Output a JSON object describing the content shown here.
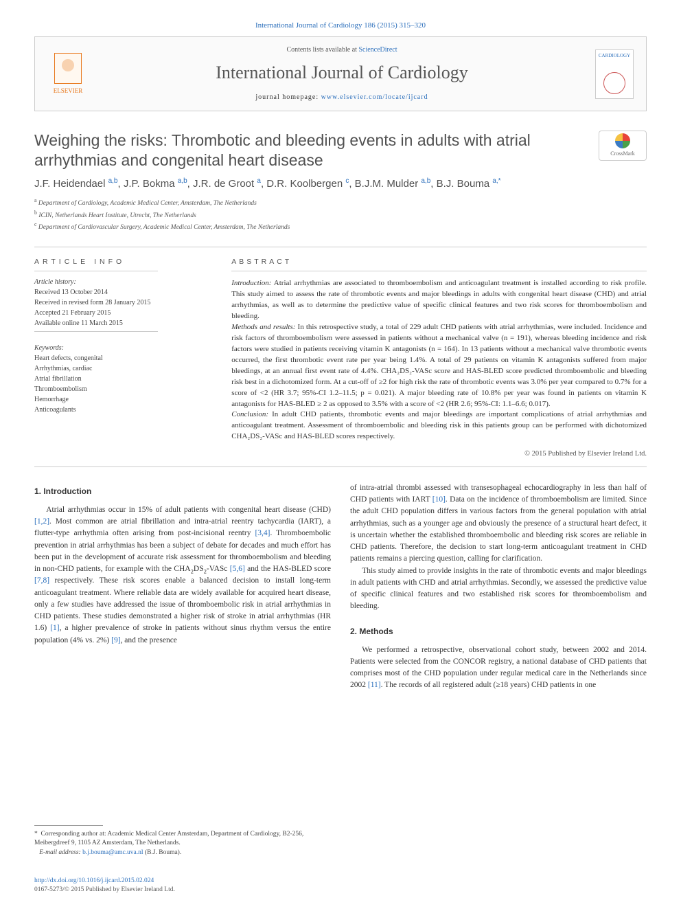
{
  "top_citation": "International Journal of Cardiology 186 (2015) 315–320",
  "header": {
    "contents_prefix": "Contents lists available at ",
    "contents_link": "ScienceDirect",
    "journal_name": "International Journal of Cardiology",
    "homepage_prefix": "journal homepage: ",
    "homepage_url": "www.elsevier.com/locate/ijcard",
    "elsevier_label": "ELSEVIER",
    "cover_label": "CARDIOLOGY"
  },
  "crossmark_label": "CrossMark",
  "title": "Weighing the risks: Thrombotic and bleeding events in adults with atrial arrhythmias and congenital heart disease",
  "authors_html": "J.F. Heidendael <sup>a,b</sup>, J.P. Bokma <sup>a,b</sup>, J.R. de Groot <sup>a</sup>, D.R. Koolbergen <sup>c</sup>, B.J.M. Mulder <sup>a,b</sup>, B.J. Bouma <sup>a,*</sup>",
  "affiliations": [
    {
      "sup": "a",
      "text": "Department of Cardiology, Academic Medical Center, Amsterdam, The Netherlands"
    },
    {
      "sup": "b",
      "text": "ICIN, Netherlands Heart Institute, Utrecht, The Netherlands"
    },
    {
      "sup": "c",
      "text": "Department of Cardiovascular Surgery, Academic Medical Center, Amsterdam, The Netherlands"
    }
  ],
  "article_info_heading": "ARTICLE INFO",
  "abstract_heading": "ABSTRACT",
  "history": {
    "label": "Article history:",
    "received": "Received 13 October 2014",
    "revised": "Received in revised form 28 January 2015",
    "accepted": "Accepted 21 February 2015",
    "online": "Available online 11 March 2015"
  },
  "keywords_label": "Keywords:",
  "keywords": [
    "Heart defects, congenital",
    "Arrhythmias, cardiac",
    "Atrial fibrillation",
    "Thromboembolism",
    "Hemorrhage",
    "Anticoagulants"
  ],
  "abstract": {
    "intro_label": "Introduction:",
    "intro": " Atrial arrhythmias are associated to thromboembolism and anticoagulant treatment is installed according to risk profile. This study aimed to assess the rate of thrombotic events and major bleedings in adults with congenital heart disease (CHD) and atrial arrhythmias, as well as to determine the predictive value of specific clinical features and two risk scores for thromboembolism and bleeding.",
    "methods_label": "Methods and results:",
    "methods": " In this retrospective study, a total of 229 adult CHD patients with atrial arrhythmias, were included. Incidence and risk factors of thromboembolism were assessed in patients without a mechanical valve (n = 191), whereas bleeding incidence and risk factors were studied in patients receiving vitamin K antagonists (n = 164). In 13 patients without a mechanical valve thrombotic events occurred, the first thrombotic event rate per year being 1.4%. A total of 29 patients on vitamin K antagonists suffered from major bleedings, at an annual first event rate of 4.4%. CHA₂DS₂-VASc score and HAS-BLED score predicted thromboembolic and bleeding risk best in a dichotomized form. At a cut-off of ≥2 for high risk the rate of thrombotic events was 3.0% per year compared to 0.7% for a score of <2 (HR 3.7; 95%-CI 1.2–11.5; p = 0.021). A major bleeding rate of 10.8% per year was found in patients on vitamin K antagonists for HAS-BLED ≥ 2 as opposed to 3.5% with a score of <2 (HR 2.6; 95%-CI: 1.1–6.6; 0.017).",
    "conclusion_label": "Conclusion:",
    "conclusion": " In adult CHD patients, thrombotic events and major bleedings are important complications of atrial arrhythmias and anticoagulant treatment. Assessment of thromboembolic and bleeding risk in this patients group can be performed with dichotomized CHA₂DS₂-VASc and HAS-BLED scores respectively."
  },
  "copyright": "© 2015 Published by Elsevier Ireland Ltd.",
  "sections": {
    "intro_heading": "1. Introduction",
    "intro_p1": "Atrial arrhythmias occur in 15% of adult patients with congenital heart disease (CHD) [1,2]. Most common are atrial fibrillation and intra-atrial reentry tachycardia (IART), a flutter-type arrhythmia often arising from post-incisional reentry [3,4]. Thromboembolic prevention in atrial arrhythmias has been a subject of debate for decades and much effort has been put in the development of accurate risk assessment for thromboembolism and bleeding in non-CHD patients, for example with the CHA₂DS₂-VASc [5,6] and the HAS-BLED score [7,8] respectively. These risk scores enable a balanced decision to install long-term anticoagulant treatment. Where reliable data are widely available for acquired heart disease, only a few studies have addressed the issue of thromboembolic risk in atrial arrhythmias in CHD patients. These studies demonstrated a higher risk of stroke in atrial arrhythmias (HR 1.6) [1], a higher prevalence of stroke in patients without sinus rhythm versus the entire population (4% vs. 2%) [9], and the presence",
    "intro_p2": "of intra-atrial thrombi assessed with transesophageal echocardiography in less than half of CHD patients with IART [10]. Data on the incidence of thromboembolism are limited. Since the adult CHD population differs in various factors from the general population with atrial arrhythmias, such as a younger age and obviously the presence of a structural heart defect, it is uncertain whether the established thromboembolic and bleeding risk scores are reliable in CHD patients. Therefore, the decision to start long-term anticoagulant treatment in CHD patients remains a piercing question, calling for clarification.",
    "intro_p3": "This study aimed to provide insights in the rate of thrombotic events and major bleedings in adult patients with CHD and atrial arrhythmias. Secondly, we assessed the predictive value of specific clinical features and two established risk scores for thromboembolism and bleeding.",
    "methods_heading": "2. Methods",
    "methods_p1": "We performed a retrospective, observational cohort study, between 2002 and 2014. Patients were selected from the CONCOR registry, a national database of CHD patients that comprises most of the CHD population under regular medical care in the Netherlands since 2002 [11]. The records of all registered adult (≥18 years) CHD patients in one"
  },
  "corresponding": {
    "star": "*",
    "label": "Corresponding author at: ",
    "text": "Academic Medical Center Amsterdam, Department of Cardiology, B2-256, Meibergdreef 9, 1105 AZ Amsterdam, The Netherlands.",
    "email_label": "E-mail address: ",
    "email": "b.j.bouma@amc.uva.nl",
    "email_suffix": " (B.J. Bouma)."
  },
  "footer": {
    "doi": "http://dx.doi.org/10.1016/j.ijcard.2015.02.024",
    "issn_line": "0167-5273/© 2015 Published by Elsevier Ireland Ltd."
  },
  "colors": {
    "link": "#2a6ebb",
    "text": "#333333",
    "rule": "#cccccc",
    "elsevier": "#e8791e"
  }
}
